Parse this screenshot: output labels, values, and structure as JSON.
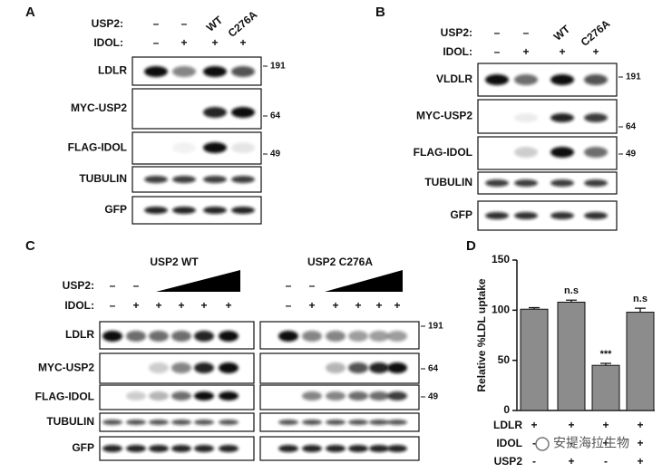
{
  "panel_a": {
    "label": "A",
    "rows": [
      {
        "name": "USP2:",
        "lanes": [
          "–",
          "–",
          "WT",
          "C276A"
        ]
      },
      {
        "name": "IDOL:",
        "lanes": [
          "–",
          "+",
          "+",
          "+"
        ]
      }
    ],
    "blots": [
      "LDLR",
      "MYC-USP2",
      "FLAG-IDOL",
      "TUBULIN",
      "GFP"
    ],
    "markers": [
      191,
      64,
      49
    ]
  },
  "panel_b": {
    "label": "B",
    "rows": [
      {
        "name": "USP2:",
        "lanes": [
          "–",
          "–",
          "WT",
          "C276A"
        ]
      },
      {
        "name": "IDOL:",
        "lanes": [
          "–",
          "+",
          "+",
          "+"
        ]
      }
    ],
    "blots": [
      "VLDLR",
      "MYC-USP2",
      "FLAG-IDOL",
      "TUBULIN",
      "GFP"
    ],
    "markers": [
      191,
      64,
      49
    ]
  },
  "panel_c": {
    "label": "C",
    "row_labels": [
      "USP2:",
      "IDOL:"
    ],
    "gels": [
      {
        "title": "USP2 WT",
        "usp2": [
          "–",
          "–"
        ],
        "idol": [
          "–",
          "+",
          "+",
          "+",
          "+",
          "+"
        ]
      },
      {
        "title": "USP2 C276A",
        "usp2": [
          "–",
          "–"
        ],
        "idol": [
          "–",
          "+",
          "+",
          "+",
          "+",
          "+"
        ]
      }
    ],
    "blots": [
      "LDLR",
      "MYC-USP2",
      "FLAG-IDOL",
      "TUBULIN",
      "GFP"
    ],
    "markers": [
      191,
      64,
      49
    ]
  },
  "chart_data": {
    "type": "bar",
    "label": "D",
    "y_label": "Relative %LDL uptake",
    "ylim": [
      0,
      150
    ],
    "yticks": [
      0,
      50,
      100,
      150
    ],
    "series": [
      {
        "color": "#8c8c8c",
        "values": [
          101,
          108,
          45,
          98
        ],
        "errors": [
          1.5,
          2,
          2,
          4
        ]
      }
    ],
    "annotations": [
      null,
      "n.s",
      "***",
      "n.s"
    ],
    "conditions": [
      {
        "name": "LDLR",
        "values": [
          "+",
          "+",
          "+",
          "+"
        ]
      },
      {
        "name": "IDOL",
        "values": [
          "-",
          "-",
          "+",
          "+"
        ]
      },
      {
        "name": "USP2",
        "values": [
          "-",
          "+",
          "-",
          "+"
        ]
      }
    ]
  },
  "watermark": "安提海拉生物"
}
